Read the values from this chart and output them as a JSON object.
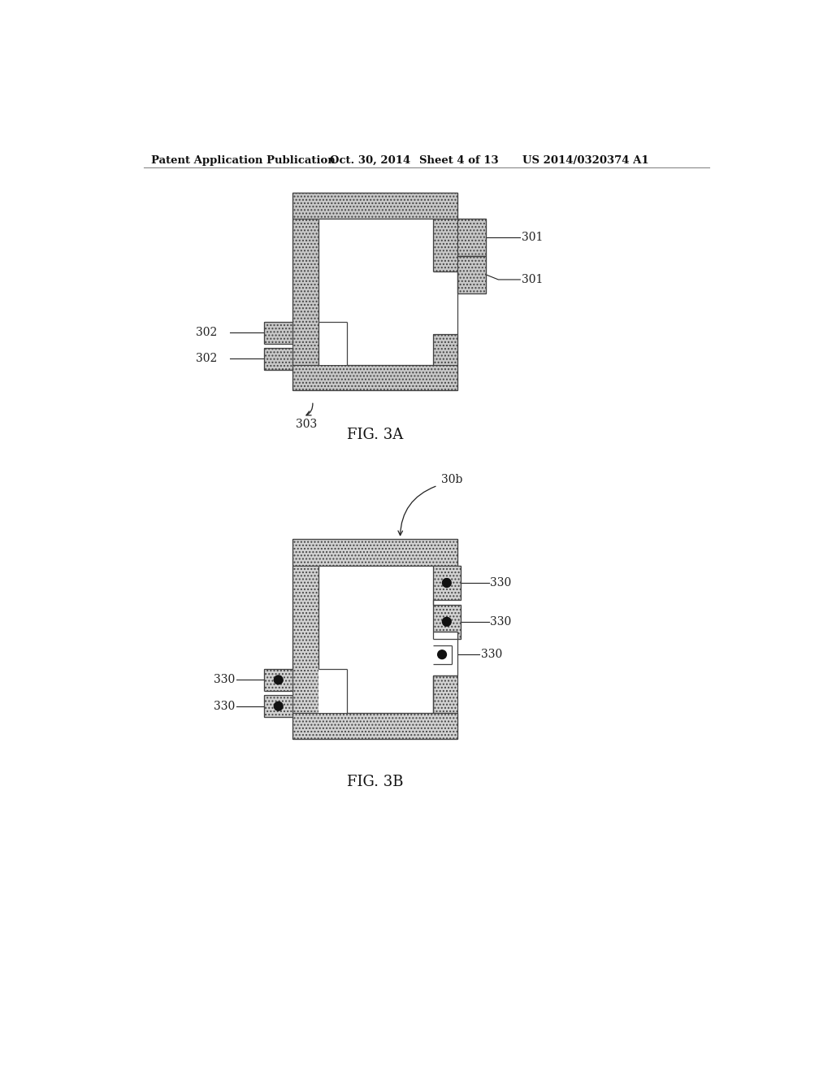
{
  "bg_color": "#ffffff",
  "header_text": "Patent Application Publication",
  "header_date": "Oct. 30, 2014",
  "header_sheet": "Sheet 4 of 13",
  "header_patent": "US 2014/0320374 A1",
  "fig3a_label": "FIG. 3A",
  "fig3b_label": "FIG. 3B",
  "fill_color": "#c8c8c8",
  "fill_color2": "#d2d2d2",
  "edge_color": "#444444",
  "label_color": "#222222",
  "dot_color": "#111111",
  "hatch": "....",
  "line_color": "#555555"
}
